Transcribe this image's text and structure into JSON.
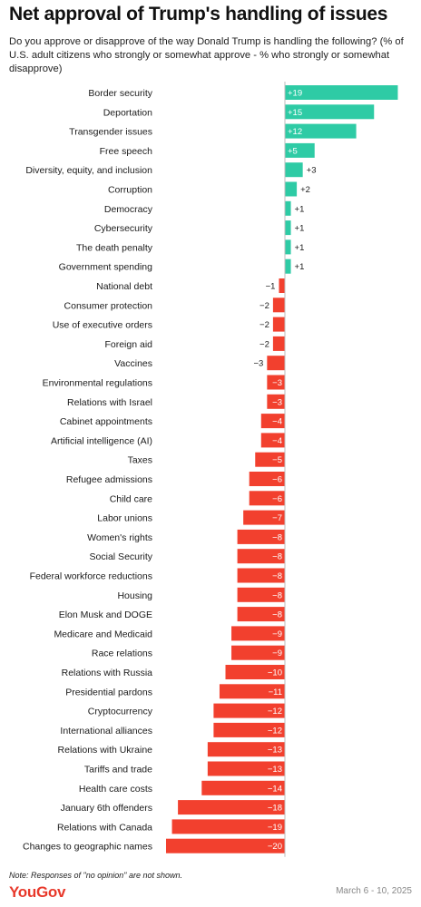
{
  "title": "Net approval of Trump's handling of issues",
  "subtitle": "Do you approve or disapprove of the way Donald Trump is handling the following? (% of U.S. adult citizens who strongly or somewhat approve - % who strongly or somewhat disapprove)",
  "note": "Note: Responses of \"no opinion\" are not shown.",
  "brand": "YouGov",
  "date_range": "March 6 - 10, 2025",
  "colors": {
    "positive": "#2ecba5",
    "negative": "#f2402e",
    "axis": "#bdbdbd"
  },
  "chart_data": {
    "type": "bar",
    "orientation": "horizontal",
    "categories": [
      "Border security",
      "Deportation",
      "Transgender issues",
      "Free speech",
      "Diversity, equity, and inclusion",
      "Corruption",
      "Democracy",
      "Cybersecurity",
      "The death penalty",
      "Government spending",
      "National debt",
      "Consumer protection",
      "Use of executive orders",
      "Foreign aid",
      "Vaccines",
      "Environmental regulations",
      "Relations with Israel",
      "Cabinet appointments",
      "Artificial intelligence (AI)",
      "Taxes",
      "Refugee admissions",
      "Child care",
      "Labor unions",
      "Women's rights",
      "Social Security",
      "Federal workforce reductions",
      "Housing",
      "Elon Musk and DOGE",
      "Medicare and Medicaid",
      "Race relations",
      "Relations with Russia",
      "Presidential pardons",
      "Cryptocurrency",
      "International alliances",
      "Relations with Ukraine",
      "Tariffs and trade",
      "Health care costs",
      "January 6th offenders",
      "Relations with Canada",
      "Changes to geographic names"
    ],
    "values": [
      19,
      15,
      12,
      5,
      3,
      2,
      1,
      1,
      1,
      1,
      -1,
      -2,
      -2,
      -2,
      -3,
      -3,
      -3,
      -4,
      -4,
      -5,
      -6,
      -6,
      -7,
      -8,
      -8,
      -8,
      -8,
      -8,
      -9,
      -9,
      -10,
      -11,
      -12,
      -12,
      -13,
      -13,
      -14,
      -18,
      -19,
      -20
    ],
    "value_labels": [
      "+19",
      "+15",
      "+12",
      "+5",
      "+3",
      "+2",
      "+1",
      "+1",
      "+1",
      "+1",
      "−1",
      "−2",
      "−2",
      "−2",
      "−3",
      "−3",
      "−3",
      "−4",
      "−4",
      "−5",
      "−6",
      "−6",
      "−7",
      "−8",
      "−8",
      "−8",
      "−8",
      "−8",
      "−9",
      "−9",
      "−10",
      "−11",
      "−12",
      "−12",
      "−13",
      "−13",
      "−14",
      "−18",
      "−19",
      "−20"
    ],
    "xlim": [
      -20,
      19
    ]
  }
}
